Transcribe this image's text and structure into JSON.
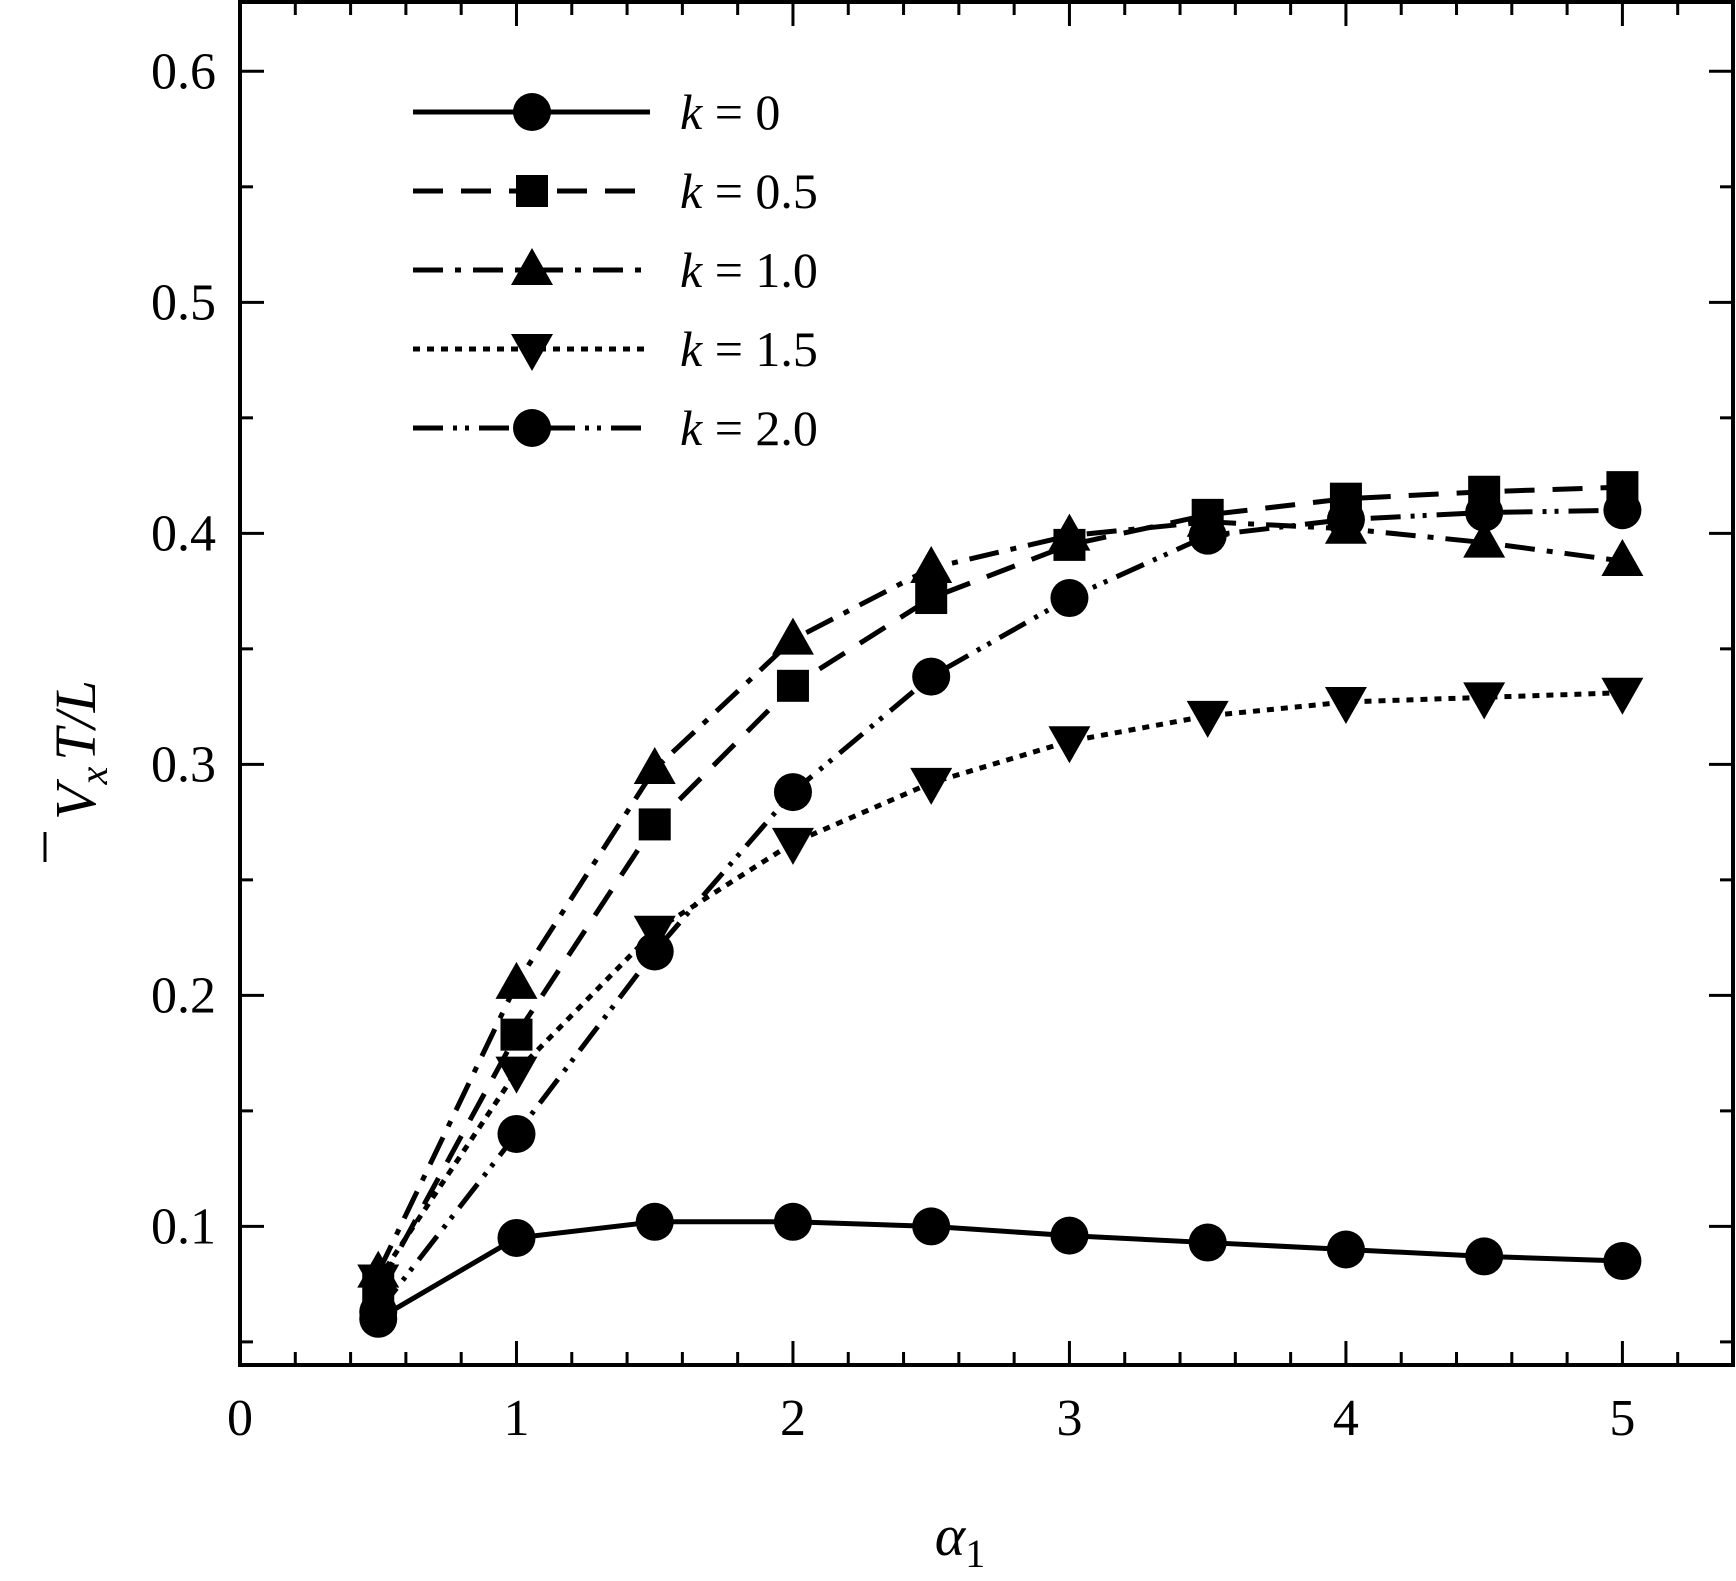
{
  "chart_data": {
    "type": "line",
    "title": "",
    "xlabel": "α",
    "xlabel_sub": "1",
    "ylabel_parts": {
      "v": "V",
      "v_sub": "x",
      "rest": "T/L"
    },
    "xlim": [
      0,
      5.4
    ],
    "ylim": [
      0.04,
      0.63
    ],
    "xticks": [
      0,
      1,
      2,
      3,
      4,
      5
    ],
    "xtick_labels": [
      "0",
      "1",
      "2",
      "3",
      "4",
      "5"
    ],
    "yticks": [
      0.1,
      0.2,
      0.3,
      0.4,
      0.5,
      0.6
    ],
    "ytick_labels": [
      "0.1",
      "0.2",
      "0.3",
      "0.4",
      "0.5",
      "0.6"
    ],
    "grid": false,
    "legend_position": "top-left",
    "x": [
      0.5,
      1.0,
      1.5,
      2.0,
      2.5,
      3.0,
      3.5,
      4.0,
      4.5,
      5.0
    ],
    "series": [
      {
        "name": "k = 0",
        "k_label": "0",
        "marker": "circle",
        "dash": "solid",
        "values": [
          0.06,
          0.095,
          0.102,
          0.102,
          0.1,
          0.096,
          0.093,
          0.09,
          0.087,
          0.085
        ]
      },
      {
        "name": "k = 0.5",
        "k_label": "0.5",
        "marker": "square",
        "dash": "dashed",
        "values": [
          0.073,
          0.183,
          0.274,
          0.334,
          0.372,
          0.395,
          0.408,
          0.415,
          0.418,
          0.42
        ]
      },
      {
        "name": "k = 1.0",
        "k_label": "1.0",
        "marker": "triangle-up",
        "dash": "dashdot",
        "values": [
          0.08,
          0.205,
          0.298,
          0.354,
          0.385,
          0.399,
          0.405,
          0.402,
          0.396,
          0.388
        ]
      },
      {
        "name": "k = 1.5",
        "k_label": "1.5",
        "marker": "triangle-down",
        "dash": "dotted",
        "values": [
          0.077,
          0.167,
          0.228,
          0.266,
          0.292,
          0.31,
          0.321,
          0.327,
          0.329,
          0.331
        ]
      },
      {
        "name": "k = 2.0",
        "k_label": "2.0",
        "marker": "circle",
        "dash": "dashdotdot",
        "values": [
          0.063,
          0.14,
          0.219,
          0.288,
          0.338,
          0.372,
          0.399,
          0.406,
          0.409,
          0.41
        ]
      }
    ]
  }
}
